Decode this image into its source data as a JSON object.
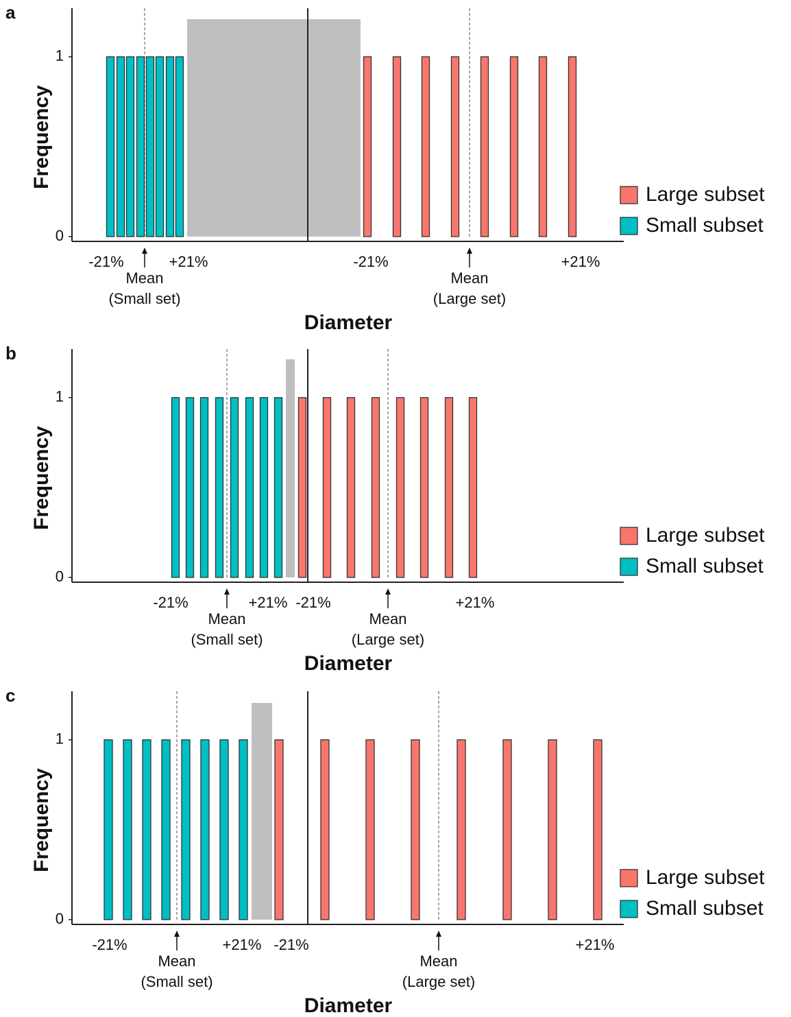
{
  "chart_data": [
    {
      "type": "bar",
      "panel_label": "a",
      "xlabel": "Diameter",
      "ylabel": "Frequency",
      "ylim": [
        0,
        1.27
      ],
      "yticks": [
        0,
        1
      ],
      "legend": "right",
      "series": [
        {
          "name": "Large subset",
          "color": "#f8766d",
          "values": [
            1,
            1,
            1,
            1,
            1,
            1,
            1,
            1
          ]
        },
        {
          "name": "Small subset",
          "color": "#00bfc4",
          "values": [
            1,
            1,
            1,
            1,
            1,
            1,
            1,
            1
          ]
        }
      ],
      "annotations": {
        "small_low": "-21%",
        "small_high": "+21%",
        "large_low": "-21%",
        "large_high": "+21%",
        "small_mean": [
          "Mean",
          "(Small set)"
        ],
        "large_mean": [
          "Mean",
          "(Large set)"
        ]
      }
    },
    {
      "type": "bar",
      "panel_label": "b",
      "xlabel": "Diameter",
      "ylabel": "Frequency",
      "ylim": [
        0,
        1.27
      ],
      "yticks": [
        0,
        1
      ],
      "legend": "right",
      "series": [
        {
          "name": "Large subset",
          "color": "#f8766d",
          "values": [
            1,
            1,
            1,
            1,
            1,
            1,
            1,
            1
          ]
        },
        {
          "name": "Small subset",
          "color": "#00bfc4",
          "values": [
            1,
            1,
            1,
            1,
            1,
            1,
            1,
            1
          ]
        }
      ],
      "annotations": {
        "small_low": "-21%",
        "small_high": "+21%",
        "large_low": "-21%",
        "large_high": "+21%",
        "small_mean": [
          "Mean",
          "(Small set)"
        ],
        "large_mean": [
          "Mean",
          "(Large set)"
        ]
      }
    },
    {
      "type": "bar",
      "panel_label": "c",
      "xlabel": "Diameter",
      "ylabel": "Frequency",
      "ylim": [
        0,
        1.27
      ],
      "yticks": [
        0,
        1
      ],
      "legend": "right",
      "series": [
        {
          "name": "Large subset",
          "color": "#f8766d",
          "values": [
            1,
            1,
            1,
            1,
            1,
            1,
            1,
            1
          ]
        },
        {
          "name": "Small subset",
          "color": "#00bfc4",
          "values": [
            1,
            1,
            1,
            1,
            1,
            1,
            1,
            1
          ]
        }
      ],
      "annotations": {
        "small_low": "-21%",
        "small_high": "+21%",
        "large_low": "-21%",
        "large_high": "+21%",
        "small_mean": [
          "Mean",
          "(Small set)"
        ],
        "large_mean": [
          "Mean",
          "(Large set)"
        ]
      }
    }
  ]
}
